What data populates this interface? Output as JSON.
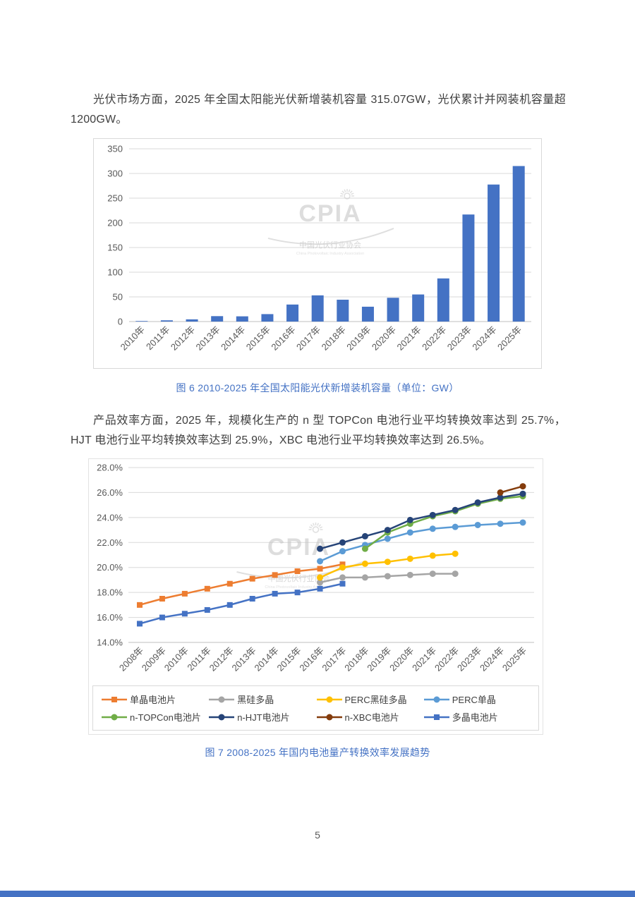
{
  "page": {
    "paragraph1": "光伏市场方面，2025 年全国太阳能光伏新增装机容量 315.07GW，光伏累计并网装机容量超 1200GW。",
    "paragraph2": "产品效率方面，2025 年，规模化生产的 n 型 TOPCon 电池行业平均转换效率达到 25.7%，HJT 电池行业平均转换效率达到 25.9%，XBC 电池行业平均转换效率达到 26.5%。",
    "figure6_caption": "图 6  2010-2025 年全国太阳能光伏新增装机容量（单位：GW）",
    "figure7_caption": "图 7  2008-2025 年国内电池量产转换效率发展趋势",
    "page_number": "5",
    "caption_color": "#4472C4",
    "footer_bar_color": "#4472C4"
  },
  "watermark": {
    "logo_text": "CPIA",
    "org_name": "中国光伏行业协会",
    "org_name_en": "China Photovoltaic Industry Association"
  },
  "chart_data": [
    {
      "type": "bar",
      "title": "2010-2025 年全国太阳能光伏新增装机容量（单位：GW）",
      "categories": [
        "2010年",
        "2011年",
        "2012年",
        "2013年",
        "2014年",
        "2015年",
        "2016年",
        "2017年",
        "2018年",
        "2019年",
        "2020年",
        "2021年",
        "2022年",
        "2023年",
        "2024年",
        "2025年"
      ],
      "values": [
        0.5,
        2.5,
        4.5,
        11.0,
        10.6,
        15.1,
        34.5,
        53.1,
        44.3,
        30.1,
        48.2,
        54.9,
        87.4,
        216.9,
        277.6,
        315.07
      ],
      "bar_color": "#4472C4",
      "ylim": [
        0,
        350
      ],
      "ytick_step": 50,
      "ytick_labels": [
        "0",
        "50",
        "100",
        "150",
        "200",
        "250",
        "300",
        "350"
      ],
      "grid": true,
      "legend_position": "none"
    },
    {
      "type": "line",
      "title": "2008-2025 年国内电池量产转换效率发展趋势",
      "categories": [
        "2008年",
        "2009年",
        "2010年",
        "2011年",
        "2012年",
        "2013年",
        "2014年",
        "2015年",
        "2016年",
        "2017年",
        "2018年",
        "2019年",
        "2020年",
        "2021年",
        "2022年",
        "2023年",
        "2024年",
        "2025年"
      ],
      "ylim": [
        14,
        28
      ],
      "ytick_step": 2,
      "ytick_labels": [
        "14.0%",
        "16.0%",
        "18.0%",
        "20.0%",
        "22.0%",
        "24.0%",
        "26.0%",
        "28.0%"
      ],
      "grid": true,
      "legend_position": "bottom",
      "series": [
        {
          "name": "单晶电池片",
          "color": "#ED7D31",
          "marker": "square",
          "values": [
            17.0,
            17.5,
            17.9,
            18.3,
            18.7,
            19.1,
            19.4,
            19.7,
            19.9,
            20.25,
            null,
            null,
            null,
            null,
            null,
            null,
            null,
            null
          ]
        },
        {
          "name": "黑硅多晶",
          "color": "#A5A5A5",
          "marker": "circle",
          "values": [
            null,
            null,
            null,
            null,
            null,
            null,
            null,
            null,
            18.8,
            19.2,
            19.2,
            19.3,
            19.4,
            19.5,
            19.5,
            null,
            null,
            null
          ]
        },
        {
          "name": "PERC黑硅多晶",
          "color": "#FFC000",
          "marker": "circle",
          "values": [
            null,
            null,
            null,
            null,
            null,
            null,
            null,
            null,
            19.2,
            20.0,
            20.3,
            20.45,
            20.7,
            20.95,
            21.1,
            null,
            null,
            null
          ]
        },
        {
          "name": "PERC单晶",
          "color": "#5B9BD5",
          "marker": "circle",
          "values": [
            null,
            null,
            null,
            null,
            null,
            null,
            null,
            null,
            20.5,
            21.3,
            21.8,
            22.3,
            22.8,
            23.1,
            23.25,
            23.4,
            23.5,
            23.6
          ]
        },
        {
          "name": "n-TOPCon电池片",
          "color": "#70AD47",
          "marker": "circle",
          "values": [
            null,
            null,
            null,
            null,
            null,
            null,
            null,
            null,
            null,
            null,
            21.5,
            22.8,
            23.5,
            24.1,
            24.5,
            25.1,
            25.5,
            25.7
          ]
        },
        {
          "name": "n-HJT电池片",
          "color": "#264478",
          "marker": "circle",
          "values": [
            null,
            null,
            null,
            null,
            null,
            null,
            null,
            null,
            21.5,
            22.0,
            22.5,
            23.0,
            23.8,
            24.2,
            24.6,
            25.2,
            25.6,
            25.9
          ]
        },
        {
          "name": "n-XBC电池片",
          "color": "#843C0C",
          "marker": "circle",
          "values": [
            null,
            null,
            null,
            null,
            null,
            null,
            null,
            null,
            null,
            null,
            null,
            null,
            null,
            null,
            null,
            null,
            26.0,
            26.5
          ]
        },
        {
          "name": "多晶电池片",
          "color": "#4472C4",
          "marker": "square",
          "values": [
            15.5,
            16.0,
            16.3,
            16.6,
            17.0,
            17.5,
            17.9,
            18.0,
            18.3,
            18.7,
            null,
            null,
            null,
            null,
            null,
            null,
            null,
            null
          ]
        }
      ]
    }
  ]
}
